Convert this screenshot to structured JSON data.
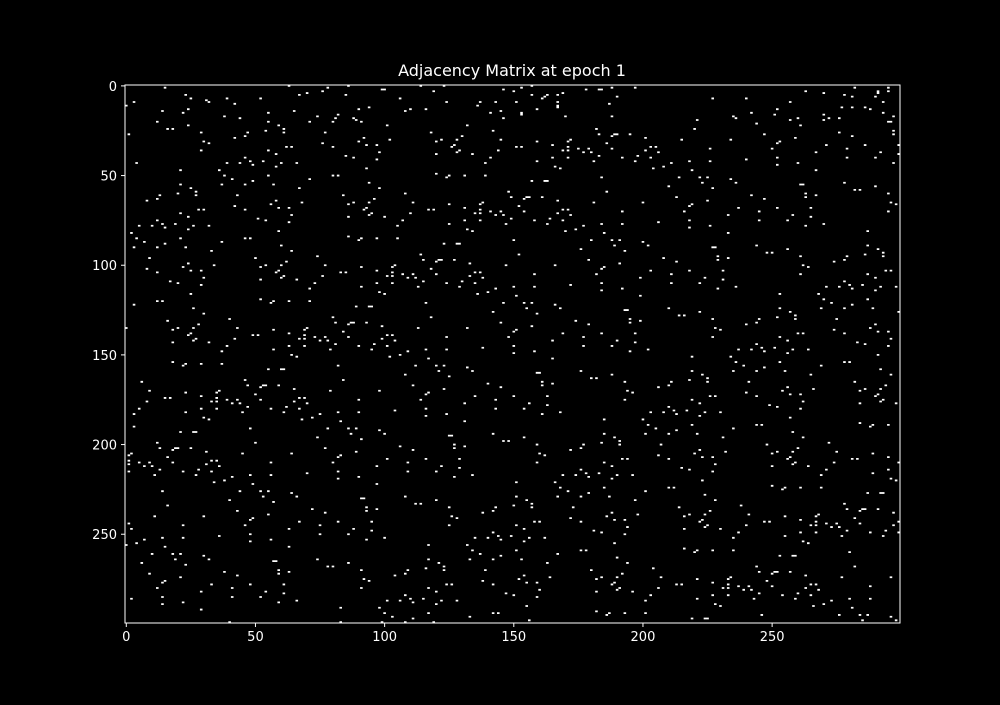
{
  "chart_data": {
    "type": "heatmap",
    "title": "Adjacency Matrix at epoch 1",
    "xlabel": "",
    "ylabel": "",
    "rows": 300,
    "cols": 300,
    "xlim": [
      0,
      300
    ],
    "ylim": [
      300,
      0
    ],
    "x_ticks": [
      0,
      50,
      100,
      150,
      200,
      250
    ],
    "y_ticks": [
      0,
      50,
      100,
      150,
      200,
      250
    ],
    "cells": "sparse binary matrix, roughly 1.5% of entries are 1, scattered uniformly",
    "density": 0.015,
    "colors": {
      "background": "#000000",
      "zero": "#000000",
      "one": "#ffffff",
      "axes": "#ffffff"
    },
    "grid": false,
    "legend": "none"
  }
}
